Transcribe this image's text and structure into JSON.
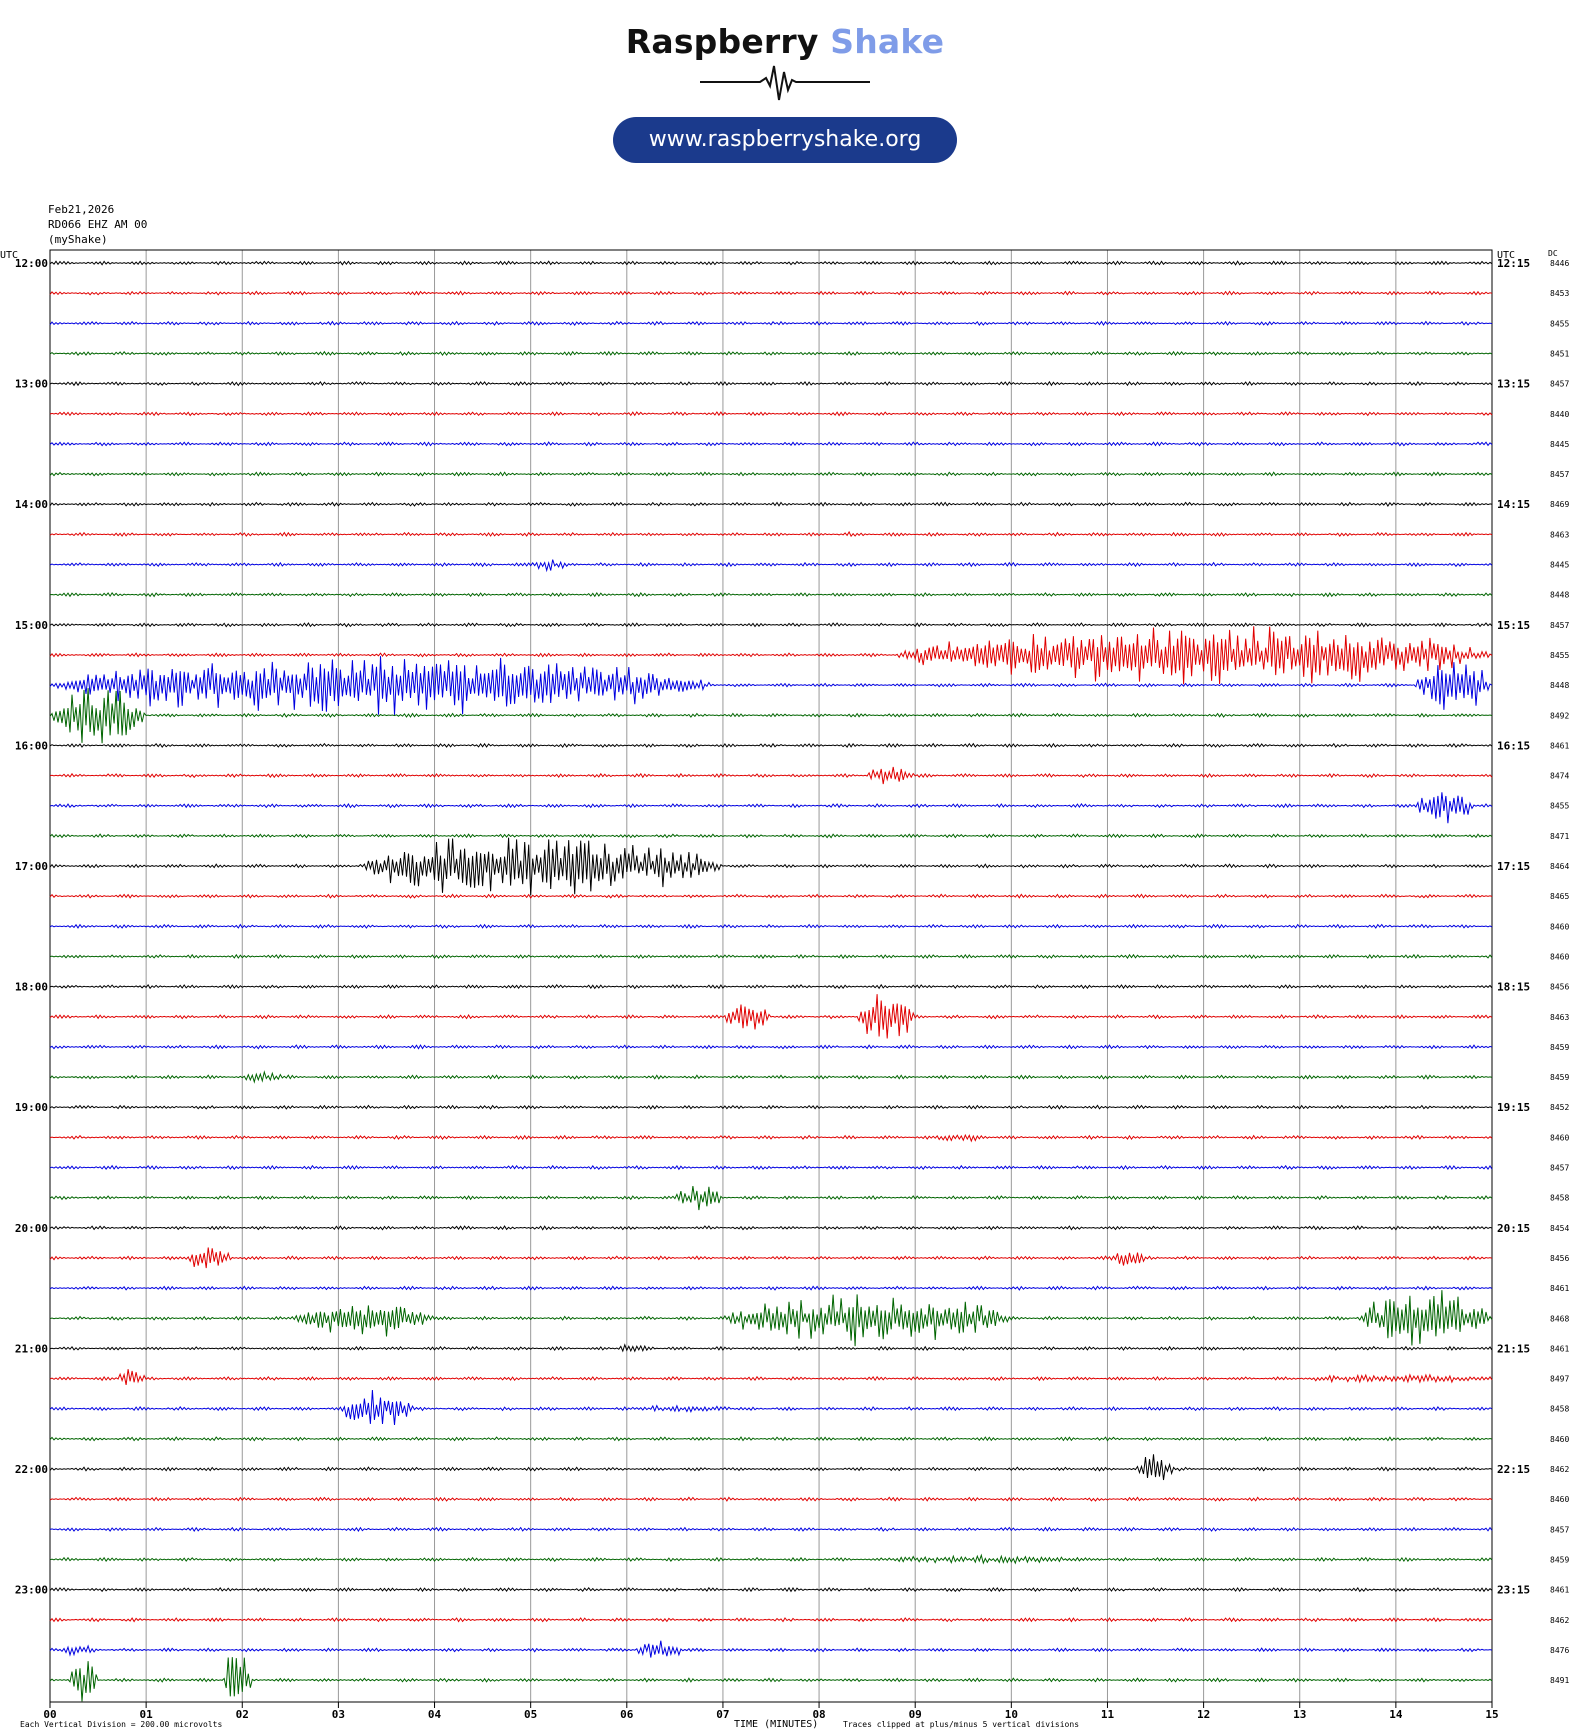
{
  "logo": {
    "brand_word1": "Raspberry",
    "brand_word2": "Shake",
    "url": "www.raspberryshake.org",
    "accent_color": "#7f9ce8",
    "pill_color": "#1b3a8c"
  },
  "header": {
    "date": "Feb21,2026",
    "station": "RD066 EHZ AM 00",
    "owner": "(myShake)"
  },
  "footer": {
    "scale_note": "Each Vertical Division =  200.00 microvolts",
    "xlabel": "TIME (MINUTES)",
    "clip_note": "Traces clipped at plus/minus 5 vertical divisions"
  },
  "chart_data": {
    "type": "line",
    "title": "",
    "left_axis_label": "UTC",
    "right_axis_label": "UTC",
    "dc_label": "DC",
    "x_ticks": [
      "00",
      "01",
      "02",
      "03",
      "04",
      "05",
      "06",
      "07",
      "08",
      "09",
      "10",
      "11",
      "12",
      "13",
      "14",
      "15"
    ],
    "xlim": [
      0,
      15
    ],
    "trace_colors": [
      "#000000",
      "#e00000",
      "#0000e0",
      "#006400"
    ],
    "left_hour_labels": [
      "12:00",
      "13:00",
      "14:00",
      "15:00",
      "16:00",
      "17:00",
      "18:00",
      "19:00",
      "20:00",
      "21:00",
      "22:00",
      "23:00"
    ],
    "right_hour_labels": [
      "12:15",
      "13:15",
      "14:15",
      "15:15",
      "16:15",
      "17:15",
      "18:15",
      "19:15",
      "20:15",
      "21:15",
      "22:15",
      "23:15"
    ],
    "dc_offsets": [
      8446,
      8453,
      8455,
      8451,
      8457,
      8440,
      8445,
      8457,
      8469,
      8463,
      8445,
      8448,
      8457,
      8455,
      8448,
      8492,
      8461,
      8474,
      8455,
      8471,
      8464,
      8465,
      8460,
      8460,
      8456,
      8463,
      8459,
      8459,
      8452,
      8460,
      8457,
      8458,
      8454,
      8456,
      8461,
      8468,
      8461,
      8497,
      8458,
      8460,
      8462,
      8460,
      8457,
      8459,
      8461,
      8462,
      8476,
      8491
    ],
    "events": [
      {
        "trace": 9,
        "start_min": 8.2,
        "end_min": 8.5,
        "amplitude": 0.5
      },
      {
        "trace": 10,
        "start_min": 5.0,
        "end_min": 5.4,
        "amplitude": 0.9
      },
      {
        "trace": 12,
        "start_min": 8.5,
        "end_min": 8.6,
        "amplitude": 0.3
      },
      {
        "trace": 13,
        "start_min": 8.8,
        "end_min": 15.0,
        "amplitude": 5.0
      },
      {
        "trace": 14,
        "start_min": 0.0,
        "end_min": 6.9,
        "amplitude": 5.0
      },
      {
        "trace": 14,
        "start_min": 14.2,
        "end_min": 15.0,
        "amplitude": 5.0
      },
      {
        "trace": 15,
        "start_min": 0.0,
        "end_min": 1.0,
        "amplitude": 5.0
      },
      {
        "trace": 17,
        "start_min": 8.5,
        "end_min": 9.0,
        "amplitude": 1.8
      },
      {
        "trace": 18,
        "start_min": 14.2,
        "end_min": 14.8,
        "amplitude": 3.0
      },
      {
        "trace": 20,
        "start_min": 3.2,
        "end_min": 7.0,
        "amplitude": 5.0
      },
      {
        "trace": 25,
        "start_min": 7.0,
        "end_min": 7.5,
        "amplitude": 2.5
      },
      {
        "trace": 25,
        "start_min": 8.4,
        "end_min": 9.0,
        "amplitude": 5.0
      },
      {
        "trace": 27,
        "start_min": 2.0,
        "end_min": 2.5,
        "amplitude": 1.0
      },
      {
        "trace": 29,
        "start_min": 9.1,
        "end_min": 9.8,
        "amplitude": 0.6
      },
      {
        "trace": 31,
        "start_min": 6.5,
        "end_min": 7.0,
        "amplitude": 2.0
      },
      {
        "trace": 33,
        "start_min": 1.4,
        "end_min": 1.9,
        "amplitude": 2.3
      },
      {
        "trace": 33,
        "start_min": 11.0,
        "end_min": 11.4,
        "amplitude": 1.5
      },
      {
        "trace": 35,
        "start_min": 2.5,
        "end_min": 4.0,
        "amplitude": 3.0
      },
      {
        "trace": 35,
        "start_min": 7.0,
        "end_min": 10.0,
        "amplitude": 4.0
      },
      {
        "trace": 35,
        "start_min": 13.6,
        "end_min": 15.0,
        "amplitude": 4.5
      },
      {
        "trace": 36,
        "start_min": 5.9,
        "end_min": 6.3,
        "amplitude": 1.0
      },
      {
        "trace": 37,
        "start_min": 0.7,
        "end_min": 1.0,
        "amplitude": 1.5
      },
      {
        "trace": 37,
        "start_min": 13.0,
        "end_min": 15.0,
        "amplitude": 0.7
      },
      {
        "trace": 38,
        "start_min": 3.0,
        "end_min": 3.8,
        "amplitude": 2.6
      },
      {
        "trace": 38,
        "start_min": 6.0,
        "end_min": 7.2,
        "amplitude": 0.6
      },
      {
        "trace": 40,
        "start_min": 11.3,
        "end_min": 11.7,
        "amplitude": 2.5
      },
      {
        "trace": 43,
        "start_min": 8.5,
        "end_min": 11.0,
        "amplitude": 0.6
      },
      {
        "trace": 46,
        "start_min": 0.1,
        "end_min": 0.5,
        "amplitude": 1.0
      },
      {
        "trace": 46,
        "start_min": 6.1,
        "end_min": 6.6,
        "amplitude": 1.6
      },
      {
        "trace": 47,
        "start_min": 0.2,
        "end_min": 0.5,
        "amplitude": 5.0
      },
      {
        "trace": 47,
        "start_min": 1.8,
        "end_min": 2.1,
        "amplitude": 5.0
      }
    ]
  }
}
